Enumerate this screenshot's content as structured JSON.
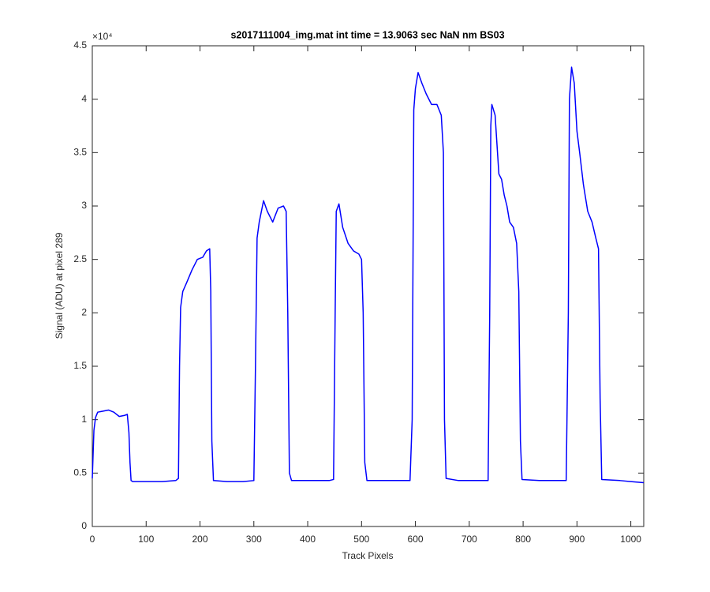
{
  "chart_data": {
    "type": "line",
    "title": "s2017111004_img.mat int time = 13.9063 sec  NaN nm BS03",
    "x_label": "Track Pixels",
    "y_label": "Signal (ADU) at pixel 289",
    "y_exponent": "×10⁴",
    "xlim": [
      0,
      1024
    ],
    "xticks": [
      0,
      100,
      200,
      300,
      400,
      500,
      600,
      700,
      800,
      900,
      1000
    ],
    "ylim": [
      0,
      4.5
    ],
    "yticks": [
      0,
      0.5,
      1,
      1.5,
      2,
      2.5,
      3,
      3.5,
      4,
      4.5
    ],
    "grid": false,
    "x": [
      0,
      3,
      6,
      10,
      20,
      30,
      40,
      50,
      60,
      65,
      68,
      70,
      72,
      75,
      100,
      130,
      155,
      160,
      162,
      164,
      168,
      175,
      185,
      195,
      205,
      212,
      218,
      220,
      222,
      225,
      250,
      280,
      300,
      303,
      306,
      310,
      318,
      325,
      335,
      345,
      355,
      360,
      363,
      366,
      370,
      400,
      440,
      448,
      451,
      453,
      458,
      465,
      475,
      485,
      495,
      500,
      503,
      506,
      510,
      550,
      590,
      594,
      597,
      600,
      605,
      612,
      620,
      630,
      640,
      648,
      652,
      654,
      657,
      680,
      710,
      735,
      738,
      740,
      742,
      748,
      755,
      760,
      765,
      770,
      775,
      782,
      788,
      792,
      795,
      798,
      830,
      880,
      884,
      886,
      890,
      895,
      900,
      905,
      912,
      920,
      928,
      935,
      940,
      943,
      946,
      980,
      1000,
      1024
    ],
    "series": [
      {
        "color": "#0000ff",
        "values": [
          0.45,
          0.9,
          1.02,
          1.07,
          1.08,
          1.09,
          1.07,
          1.03,
          1.04,
          1.05,
          0.88,
          0.6,
          0.43,
          0.42,
          0.42,
          0.42,
          0.43,
          0.45,
          1.5,
          2.05,
          2.2,
          2.28,
          2.4,
          2.5,
          2.52,
          2.58,
          2.6,
          2.2,
          0.8,
          0.43,
          0.42,
          0.42,
          0.43,
          1.5,
          2.7,
          2.85,
          3.05,
          2.95,
          2.85,
          2.98,
          3.0,
          2.95,
          2.0,
          0.5,
          0.43,
          0.43,
          0.43,
          0.44,
          2.0,
          2.95,
          3.02,
          2.8,
          2.65,
          2.58,
          2.55,
          2.5,
          2.0,
          0.6,
          0.43,
          0.43,
          0.43,
          1.0,
          3.9,
          4.1,
          4.25,
          4.15,
          4.05,
          3.95,
          3.95,
          3.85,
          3.5,
          1.0,
          0.45,
          0.43,
          0.43,
          0.43,
          2.0,
          3.75,
          3.95,
          3.85,
          3.3,
          3.25,
          3.1,
          3.0,
          2.85,
          2.8,
          2.65,
          2.2,
          0.8,
          0.44,
          0.43,
          0.43,
          2.0,
          4.0,
          4.3,
          4.15,
          3.7,
          3.5,
          3.2,
          2.95,
          2.85,
          2.7,
          2.6,
          1.2,
          0.44,
          0.43,
          0.42,
          0.41
        ]
      }
    ]
  }
}
